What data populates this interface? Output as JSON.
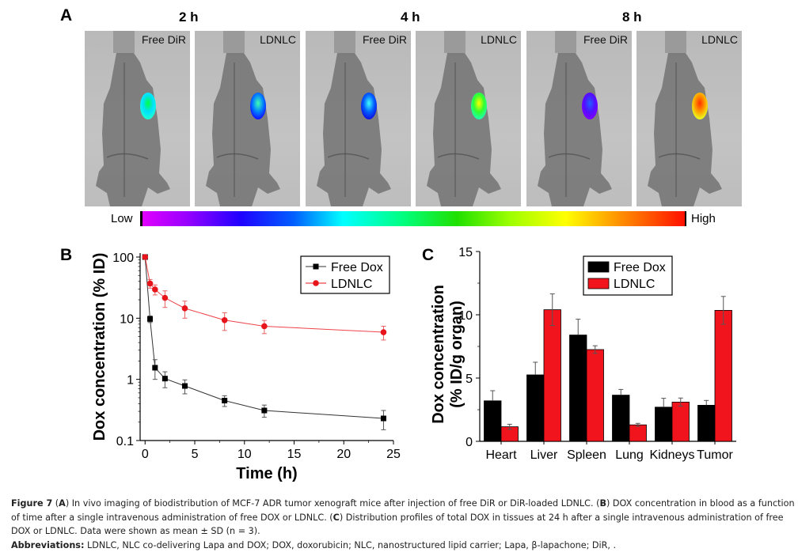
{
  "panel_a": {
    "letter": "A",
    "time_labels": [
      "2 h",
      "4 h",
      "8 h"
    ],
    "images": [
      {
        "time": "2 h",
        "label": "Free DiR",
        "signal_colors": [
          "#00ff40",
          "#00e0ff",
          "#20ffd0"
        ]
      },
      {
        "time": "2 h",
        "label": "LDNLC",
        "signal_colors": [
          "#40ffb0",
          "#0080ff",
          "#1010ff"
        ]
      },
      {
        "time": "4 h",
        "label": "Free DiR",
        "signal_colors": [
          "#40ffff",
          "#0060ff",
          "#1010e0"
        ]
      },
      {
        "time": "4 h",
        "label": "LDNLC",
        "signal_colors": [
          "#ffff00",
          "#30ff30",
          "#20ffb0"
        ]
      },
      {
        "time": "8 h",
        "label": "Free DiR",
        "signal_colors": [
          "#2060ff",
          "#5010ff",
          "#8000ff"
        ]
      },
      {
        "time": "8 h",
        "label": "LDNLC",
        "signal_colors": [
          "#ff3000",
          "#ffa000",
          "#e8ff20"
        ]
      }
    ],
    "colorbar": {
      "low_label": "Low",
      "high_label": "High"
    }
  },
  "chart_data": [
    {
      "panel": "B",
      "type": "line",
      "xlabel": "Time (h)",
      "ylabel": "Dox concentration (% ID)",
      "yscale": "log",
      "xlim": [
        -0.5,
        25
      ],
      "ylim": [
        0.1,
        100
      ],
      "xticks": [
        0,
        5,
        10,
        15,
        20,
        25
      ],
      "xtick_labels": [
        "0",
        "5",
        "10",
        "15",
        "20",
        "25"
      ],
      "yticks": [
        0.1,
        1,
        10,
        100
      ],
      "ytick_labels": [
        "0.1",
        "1",
        "10",
        "100"
      ],
      "grid": false,
      "legend_position": "top-right",
      "x": [
        0,
        0.5,
        1,
        2,
        4,
        8,
        12,
        24
      ],
      "series": [
        {
          "name": "Free Dox",
          "color": "#000000",
          "marker": "square",
          "values": [
            100,
            9.7,
            1.55,
            1.03,
            0.78,
            0.45,
            0.31,
            0.23
          ],
          "error": [
            0,
            1.2,
            0.55,
            0.3,
            0.2,
            0.09,
            0.07,
            0.08
          ]
        },
        {
          "name": "LDNLC",
          "color": "#e8141c",
          "marker": "circle",
          "values": [
            100,
            37,
            29.5,
            21.5,
            14.5,
            9.3,
            7.4,
            5.9
          ],
          "error": [
            0,
            6,
            5.5,
            6.5,
            4.5,
            3,
            1.8,
            1.5
          ]
        }
      ]
    },
    {
      "panel": "C",
      "type": "bar",
      "xlabel": "",
      "ylabel": "Dox concentration (% ID/g organ)",
      "ylabel_lines": [
        "Dox concentration",
        "(% ID/g organ)"
      ],
      "ylim": [
        0,
        15
      ],
      "yticks": [
        0,
        5,
        10,
        15
      ],
      "ytick_labels": [
        "0",
        "5",
        "10",
        "15"
      ],
      "grid": false,
      "legend_position": "top-center",
      "categories": [
        "Heart",
        "Liver",
        "Spleen",
        "Lung",
        "Kidneys",
        "Tumor"
      ],
      "series": [
        {
          "name": "Free Dox",
          "color": "#000000",
          "values": [
            3.2,
            5.25,
            8.4,
            3.65,
            2.7,
            2.85
          ],
          "error": [
            0.8,
            1.0,
            1.25,
            0.45,
            0.7,
            0.38
          ]
        },
        {
          "name": "LDNLC",
          "color": "#f2141c",
          "values": [
            1.15,
            10.4,
            7.25,
            1.3,
            3.1,
            10.35
          ],
          "error": [
            0.2,
            1.25,
            0.3,
            0.12,
            0.32,
            1.1
          ]
        }
      ]
    }
  ],
  "caption": {
    "figure_label": "Figure 7",
    "part_a_label": "A",
    "part_a_text": ") In vivo imaging of biodistribution of MCF-7 ADR tumor xenograft mice after injection of free DiR or DiR-loaded LDNLC. (",
    "part_b_label": "B",
    "part_b_text": ") DOX concentration in blood as a function of time after a single intravenous administration of free DOX or LDNLC. (",
    "part_c_label": "C",
    "part_c_text": ") Distribution profiles of total DOX in tissues at 24 h after a single intravenous administration of free DOX or LDNLC. Data were shown as mean ± SD (n = 3).",
    "abbrev_label": "Abbreviations:",
    "abbrev_text": " LDNLC, NLC co-delivering Lapa and DOX; DOX, doxorubicin; NLC, nanostructured lipid carrier; Lapa, β-lapachone; DiR, ."
  }
}
